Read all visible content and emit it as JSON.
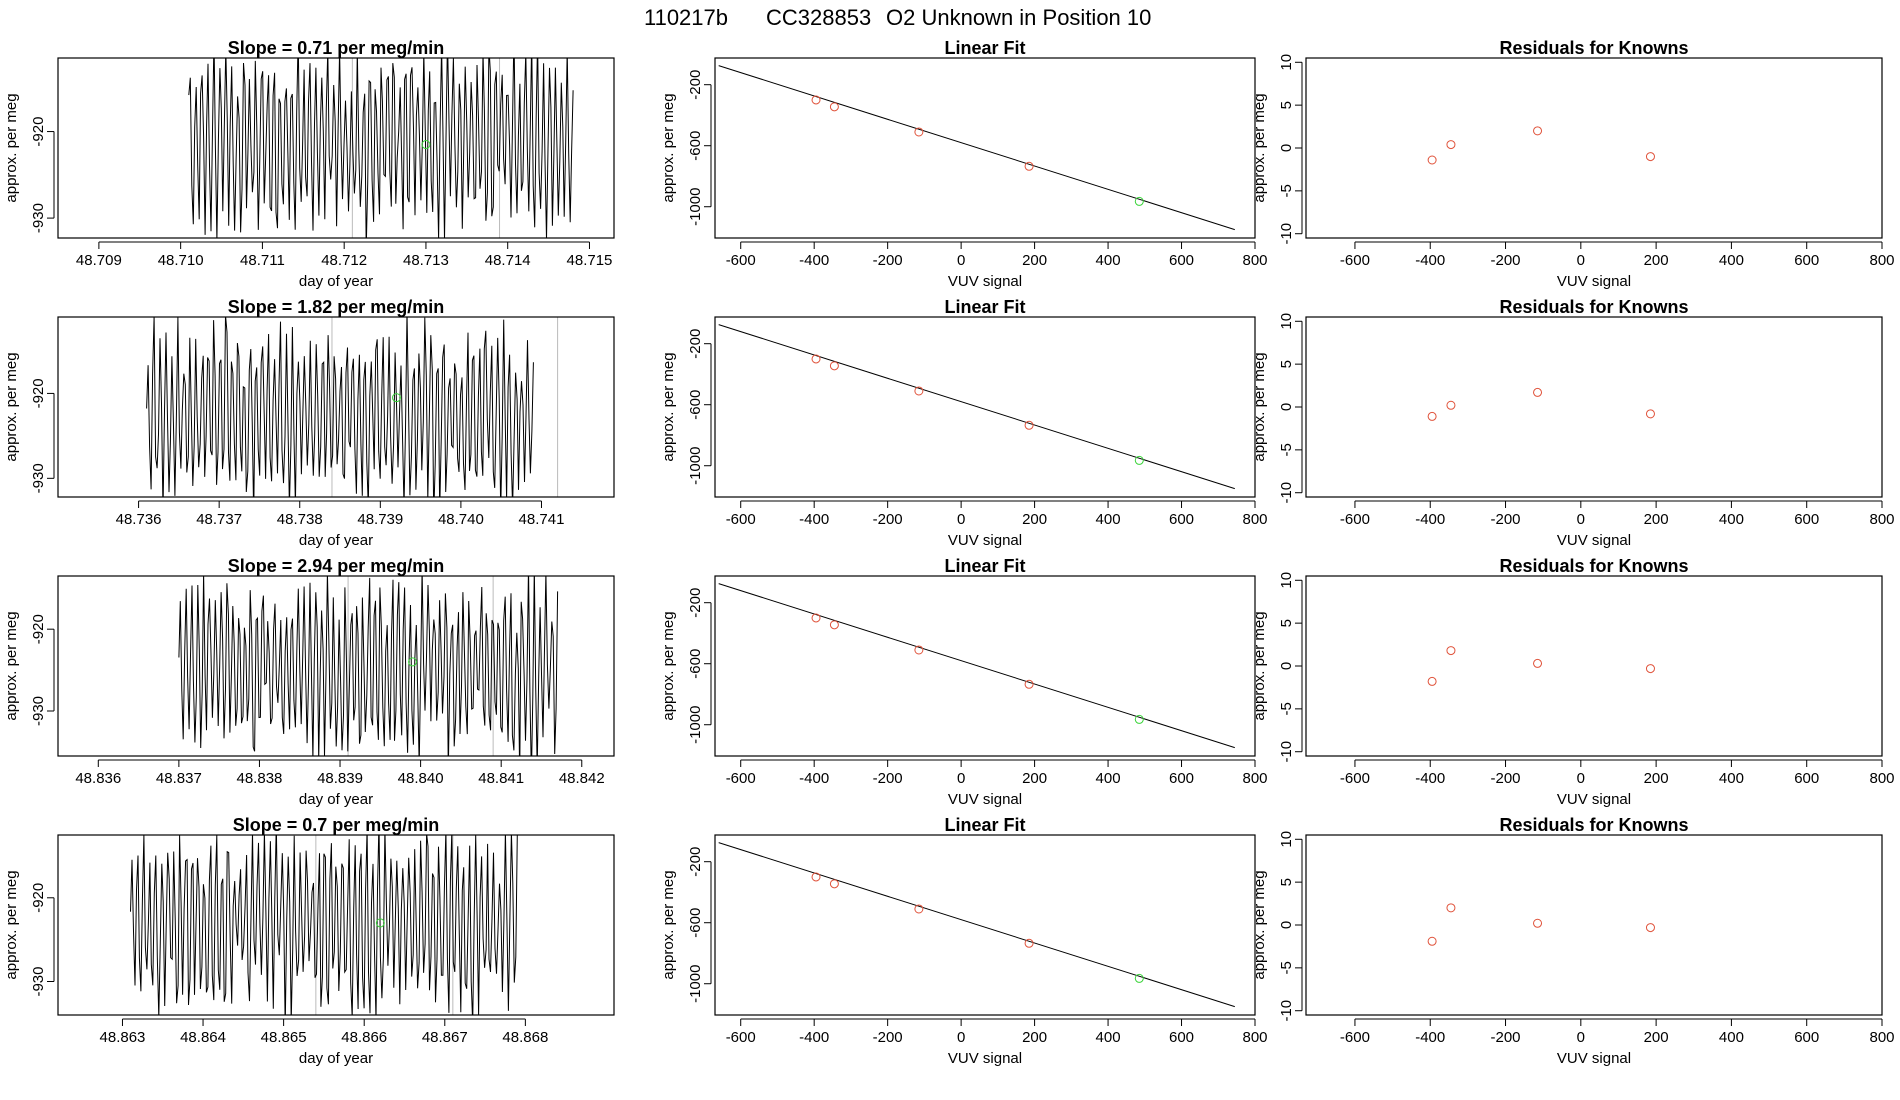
{
  "figure_title": {
    "run_id": "110217b",
    "cylinder": "CC328853",
    "label": "O2 Unknown in Position  10"
  },
  "colors": {
    "trace": "#000000",
    "known_point": "#e0523a",
    "unknown_point": "#3ad43a",
    "vline": "#bbbbbb",
    "frame": "#000000"
  },
  "chart_data": [
    {
      "type": "line",
      "panel": "time-series",
      "row": 1,
      "title": "Slope =  0.71  per meg/min",
      "xlabel": "day of year",
      "ylabel": "approx. per meg",
      "xlim": [
        48.7085,
        48.7153
      ],
      "ylim": [
        -932.3,
        -911.5
      ],
      "xticks": [
        "48.709",
        "48.710",
        "48.711",
        "48.712",
        "48.713",
        "48.714",
        "48.715"
      ],
      "xtick_values": [
        48.709,
        48.71,
        48.711,
        48.712,
        48.713,
        48.714,
        48.715
      ],
      "yticks": [
        "-920",
        "-930"
      ],
      "ytick_values": [
        -920,
        -930
      ],
      "x_start": 48.7101,
      "x_end": 48.7148,
      "seed": 1,
      "mean": -921.0,
      "vlines": [
        48.7121,
        48.7139
      ],
      "green_point": [
        48.713,
        -921.5
      ]
    },
    {
      "type": "line",
      "panel": "time-series",
      "row": 2,
      "title": "Slope =  1.82  per meg/min",
      "xlabel": "day of year",
      "ylabel": "approx. per meg",
      "xlim": [
        48.735,
        48.7419
      ],
      "ylim": [
        -932.2,
        -911.0
      ],
      "xticks": [
        "48.736",
        "48.737",
        "48.738",
        "48.739",
        "48.740",
        "48.741"
      ],
      "xtick_values": [
        48.736,
        48.737,
        48.738,
        48.739,
        48.74,
        48.741
      ],
      "yticks": [
        "-920",
        "-930"
      ],
      "ytick_values": [
        -920,
        -930
      ],
      "x_start": 48.7361,
      "x_end": 48.7409,
      "seed": 2,
      "mean": -922.5,
      "vlines": [
        48.7384,
        48.7412
      ],
      "green_point": [
        48.7392,
        -920.5
      ]
    },
    {
      "type": "line",
      "panel": "time-series",
      "row": 3,
      "title": "Slope =  2.94  per meg/min",
      "xlabel": "day of year",
      "ylabel": "approx. per meg",
      "xlim": [
        48.8355,
        48.8424
      ],
      "ylim": [
        -935.5,
        -913.5
      ],
      "xticks": [
        "48.836",
        "48.837",
        "48.838",
        "48.839",
        "48.840",
        "48.841",
        "48.842"
      ],
      "xtick_values": [
        48.836,
        48.837,
        48.838,
        48.839,
        48.84,
        48.841,
        48.842
      ],
      "yticks": [
        "-920",
        "-930"
      ],
      "ytick_values": [
        -920,
        -930
      ],
      "x_start": 48.837,
      "x_end": 48.8417,
      "seed": 3,
      "mean": -925.0,
      "vlines": [
        48.8391,
        48.8409
      ],
      "green_point": [
        48.8399,
        -924.0
      ]
    },
    {
      "type": "line",
      "panel": "time-series",
      "row": 4,
      "title": "Slope =  0.7  per meg/min",
      "xlabel": "day of year",
      "ylabel": "approx. per meg",
      "xlim": [
        48.8622,
        48.8691
      ],
      "ylim": [
        -934.0,
        -912.5
      ],
      "xticks": [
        "48.863",
        "48.864",
        "48.865",
        "48.866",
        "48.867",
        "48.868"
      ],
      "xtick_values": [
        48.863,
        48.864,
        48.865,
        48.866,
        48.867,
        48.868
      ],
      "yticks": [
        "-920",
        "-930"
      ],
      "ytick_values": [
        -920,
        -930
      ],
      "x_start": 48.8631,
      "x_end": 48.8679,
      "seed": 4,
      "mean": -922.5,
      "vlines": [
        48.8654,
        48.8671
      ],
      "green_point": [
        48.8662,
        -923.0
      ]
    },
    {
      "type": "scatter",
      "panel": "linear-fit",
      "title": "Linear Fit",
      "xlabel": "VUV signal",
      "ylabel": "approx. per meg",
      "xlim": [
        -670,
        800
      ],
      "ylim": [
        -1205,
        -25
      ],
      "xticks": [
        "-600",
        "-400",
        "-200",
        "0",
        "200",
        "400",
        "600",
        "800"
      ],
      "xtick_values": [
        -600,
        -400,
        -200,
        0,
        200,
        400,
        600,
        800
      ],
      "yticks": [
        "-200",
        "-600",
        "-1000"
      ],
      "ytick_values": [
        -200,
        -600,
        -1000
      ],
      "fit_line": {
        "x0": -660,
        "y0": -75,
        "x1": 745,
        "y1": -1150
      },
      "knowns": [
        [
          -395,
          -300
        ],
        [
          -345,
          -345
        ],
        [
          -115,
          -510
        ],
        [
          185,
          -735
        ]
      ],
      "unknown": [
        [
          485,
          -965
        ]
      ]
    },
    {
      "type": "scatter",
      "panel": "residuals",
      "row": 1,
      "title": "Residuals for Knowns",
      "xlabel": "VUV signal",
      "ylabel": "approx. per meg",
      "xlim": [
        -730,
        800
      ],
      "ylim": [
        -10.5,
        10.5
      ],
      "xticks": [
        "-600",
        "-400",
        "-200",
        "0",
        "200",
        "400",
        "600",
        "800"
      ],
      "xtick_values": [
        -600,
        -400,
        -200,
        0,
        200,
        400,
        600,
        800
      ],
      "yticks": [
        "-10",
        "-5",
        "0",
        "5",
        "10"
      ],
      "ytick_values": [
        -10,
        -5,
        0,
        5,
        10
      ],
      "points": [
        [
          -395,
          -1.4
        ],
        [
          -345,
          0.4
        ],
        [
          -115,
          2.0
        ],
        [
          185,
          -1.0
        ]
      ]
    },
    {
      "type": "scatter",
      "panel": "residuals",
      "row": 2,
      "title": "Residuals for Knowns",
      "xlabel": "VUV signal",
      "ylabel": "approx. per meg",
      "xlim": [
        -730,
        800
      ],
      "ylim": [
        -10.5,
        10.5
      ],
      "xticks": [
        "-600",
        "-400",
        "-200",
        "0",
        "200",
        "400",
        "600",
        "800"
      ],
      "xtick_values": [
        -600,
        -400,
        -200,
        0,
        200,
        400,
        600,
        800
      ],
      "yticks": [
        "-10",
        "-5",
        "0",
        "5",
        "10"
      ],
      "ytick_values": [
        -10,
        -5,
        0,
        5,
        10
      ],
      "points": [
        [
          -395,
          -1.1
        ],
        [
          -345,
          0.2
        ],
        [
          -115,
          1.7
        ],
        [
          185,
          -0.8
        ]
      ]
    },
    {
      "type": "scatter",
      "panel": "residuals",
      "row": 3,
      "title": "Residuals for Knowns",
      "xlabel": "VUV signal",
      "ylabel": "approx. per meg",
      "xlim": [
        -730,
        800
      ],
      "ylim": [
        -10.5,
        10.5
      ],
      "xticks": [
        "-600",
        "-400",
        "-200",
        "0",
        "200",
        "400",
        "600",
        "800"
      ],
      "xtick_values": [
        -600,
        -400,
        -200,
        0,
        200,
        400,
        600,
        800
      ],
      "yticks": [
        "-10",
        "-5",
        "0",
        "5",
        "10"
      ],
      "ytick_values": [
        -10,
        -5,
        0,
        5,
        10
      ],
      "points": [
        [
          -395,
          -1.8
        ],
        [
          -345,
          1.8
        ],
        [
          -115,
          0.3
        ],
        [
          185,
          -0.3
        ]
      ]
    },
    {
      "type": "scatter",
      "panel": "residuals",
      "row": 4,
      "title": "Residuals for Knowns",
      "xlabel": "VUV signal",
      "ylabel": "approx. per meg",
      "xlim": [
        -730,
        800
      ],
      "ylim": [
        -10.5,
        10.5
      ],
      "xticks": [
        "-600",
        "-400",
        "-200",
        "0",
        "200",
        "400",
        "600",
        "800"
      ],
      "xtick_values": [
        -600,
        -400,
        -200,
        0,
        200,
        400,
        600,
        800
      ],
      "yticks": [
        "-10",
        "-5",
        "0",
        "5",
        "10"
      ],
      "ytick_values": [
        -10,
        -5,
        0,
        5,
        10
      ],
      "points": [
        [
          -395,
          -1.9
        ],
        [
          -345,
          2.0
        ],
        [
          -115,
          0.2
        ],
        [
          185,
          -0.3
        ]
      ]
    }
  ]
}
